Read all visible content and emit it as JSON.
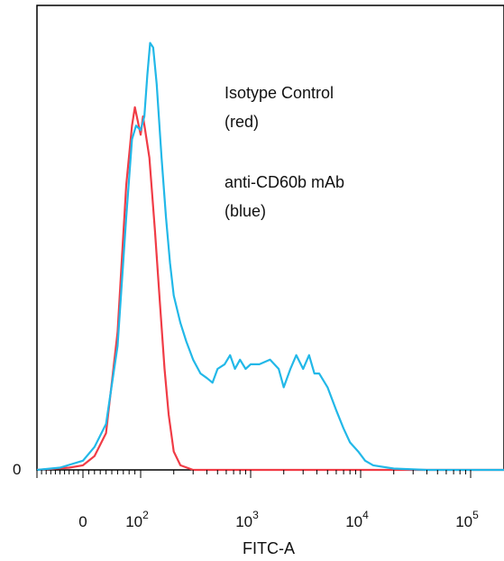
{
  "chart_data": {
    "type": "line",
    "title": "",
    "xlabel": "FITC-A",
    "ylabel": "",
    "x_scale": "biexponential (log above ~10^2)",
    "xlim": [
      -100,
      130000
    ],
    "y_tick_labels": [
      "0"
    ],
    "x_tick_labels": [
      {
        "base": "",
        "exp": "",
        "text": "0",
        "value": 0
      },
      {
        "base": "10",
        "exp": "2",
        "text": "10^2",
        "value": 100
      },
      {
        "base": "10",
        "exp": "3",
        "text": "10^3",
        "value": 1000
      },
      {
        "base": "10",
        "exp": "4",
        "text": "10^4",
        "value": 10000
      },
      {
        "base": "10",
        "exp": "5",
        "text": "10^5",
        "value": 100000
      }
    ],
    "ylim": [
      0,
      100
    ],
    "grid": false,
    "legend_position": "top-right",
    "annotations": [
      {
        "id": "iso",
        "lines": [
          "Isotype Control",
          "(red)"
        ]
      },
      {
        "id": "ab",
        "lines": [
          "anti-CD60b mAb",
          "(blue)"
        ]
      }
    ],
    "series": [
      {
        "name": "Isotype Control",
        "color": "#f03c46",
        "points": [
          [
            -100,
            0
          ],
          [
            -30,
            0.5
          ],
          [
            0,
            1
          ],
          [
            20,
            3
          ],
          [
            40,
            8
          ],
          [
            60,
            30
          ],
          [
            75,
            62
          ],
          [
            85,
            75
          ],
          [
            90,
            79
          ],
          [
            95,
            76
          ],
          [
            100,
            73
          ],
          [
            105,
            77
          ],
          [
            110,
            74
          ],
          [
            120,
            68
          ],
          [
            135,
            52
          ],
          [
            150,
            36
          ],
          [
            165,
            22
          ],
          [
            180,
            12
          ],
          [
            200,
            4
          ],
          [
            230,
            1
          ],
          [
            300,
            0
          ],
          [
            1000,
            0
          ],
          [
            10000,
            0
          ],
          [
            130000,
            0
          ]
        ]
      },
      {
        "name": "anti-CD60b mAb",
        "color": "#22b8e8",
        "points": [
          [
            -100,
            0
          ],
          [
            -50,
            0.5
          ],
          [
            0,
            2
          ],
          [
            20,
            5
          ],
          [
            40,
            10
          ],
          [
            60,
            27
          ],
          [
            75,
            55
          ],
          [
            85,
            72
          ],
          [
            92,
            75
          ],
          [
            100,
            74
          ],
          [
            108,
            77
          ],
          [
            115,
            86
          ],
          [
            122,
            93
          ],
          [
            130,
            92
          ],
          [
            140,
            84
          ],
          [
            155,
            68
          ],
          [
            170,
            55
          ],
          [
            185,
            45
          ],
          [
            200,
            38
          ],
          [
            230,
            32
          ],
          [
            260,
            28
          ],
          [
            300,
            24
          ],
          [
            350,
            21
          ],
          [
            400,
            20
          ],
          [
            450,
            19
          ],
          [
            500,
            22
          ],
          [
            580,
            23
          ],
          [
            650,
            25
          ],
          [
            720,
            22
          ],
          [
            800,
            24
          ],
          [
            900,
            22
          ],
          [
            1000,
            23
          ],
          [
            1200,
            23
          ],
          [
            1500,
            24
          ],
          [
            1800,
            22
          ],
          [
            2000,
            18
          ],
          [
            2300,
            22
          ],
          [
            2600,
            25
          ],
          [
            3000,
            22
          ],
          [
            3400,
            25
          ],
          [
            3800,
            21
          ],
          [
            4200,
            21
          ],
          [
            5000,
            18
          ],
          [
            6000,
            13
          ],
          [
            7000,
            9
          ],
          [
            8000,
            6
          ],
          [
            9500,
            4
          ],
          [
            11000,
            2
          ],
          [
            13000,
            1
          ],
          [
            20000,
            0.3
          ],
          [
            40000,
            0
          ],
          [
            130000,
            0
          ]
        ]
      }
    ]
  }
}
